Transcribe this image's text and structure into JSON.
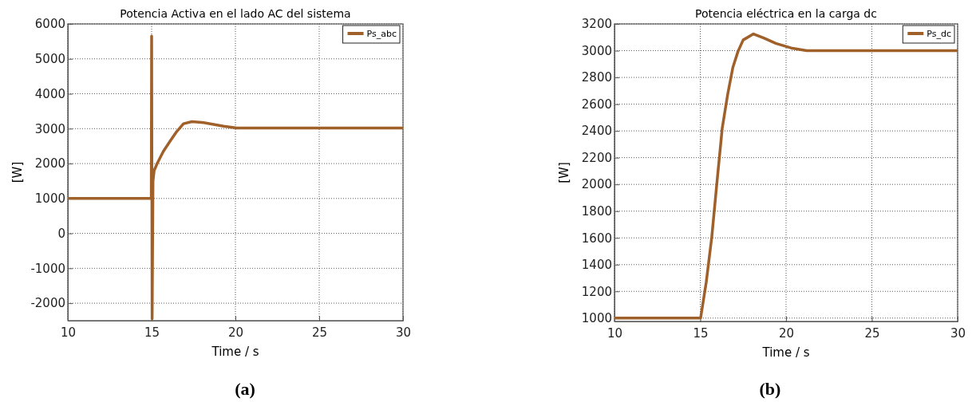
{
  "chart_data": [
    {
      "type": "line",
      "title": "Potencia Activa en el lado AC del sistema",
      "xlabel": "Time / s",
      "ylabel": "[W]",
      "annotations": [
        "(a)"
      ],
      "legend": "top right",
      "grid": true,
      "xlim": [
        10,
        30
      ],
      "ylim": [
        -2500,
        6000
      ],
      "xticks": [
        10,
        15,
        20,
        25,
        30
      ],
      "yticks": [
        -2000,
        -1000,
        0,
        1000,
        2000,
        3000,
        4000,
        5000,
        6000
      ],
      "series": [
        {
          "name": "Ps_abc",
          "color": "#a0602a",
          "x": [
            10,
            12,
            14,
            14.98,
            15,
            15.03,
            15.08,
            15.15,
            15.33,
            15.7,
            16.1,
            16.5,
            16.9,
            17.4,
            18,
            18.5,
            19.3,
            20.1,
            21,
            25,
            30
          ],
          "values": [
            1000,
            1000,
            1000,
            1000,
            5650,
            -2450,
            1500,
            1800,
            2000,
            2350,
            2640,
            2920,
            3140,
            3200,
            3180,
            3140,
            3070,
            3020,
            3020,
            3020,
            3020
          ]
        }
      ]
    },
    {
      "type": "line",
      "title": "Potencia eléctrica en la carga dc",
      "xlabel": "Time / s",
      "ylabel": "[W]",
      "annotations": [
        "(b)"
      ],
      "legend": "top right",
      "grid": true,
      "xlim": [
        10,
        30
      ],
      "ylim": [
        975,
        3200
      ],
      "xticks": [
        10,
        15,
        20,
        25,
        30
      ],
      "yticks": [
        1000,
        1200,
        1400,
        1600,
        1800,
        2000,
        2200,
        2400,
        2600,
        2800,
        3000,
        3200
      ],
      "series": [
        {
          "name": "Ps_dc",
          "color": "#a0602a",
          "x": [
            10,
            12,
            14,
            15.02,
            15.35,
            15.67,
            15.95,
            16.28,
            16.6,
            16.9,
            17.2,
            17.5,
            18.1,
            18.7,
            19.4,
            20.3,
            21.2,
            25,
            30
          ],
          "values": [
            1000,
            1000,
            1000,
            1000,
            1270,
            1605,
            1985,
            2420,
            2675,
            2875,
            2995,
            3080,
            3125,
            3095,
            3055,
            3020,
            3000,
            3000,
            3000
          ]
        }
      ]
    }
  ]
}
